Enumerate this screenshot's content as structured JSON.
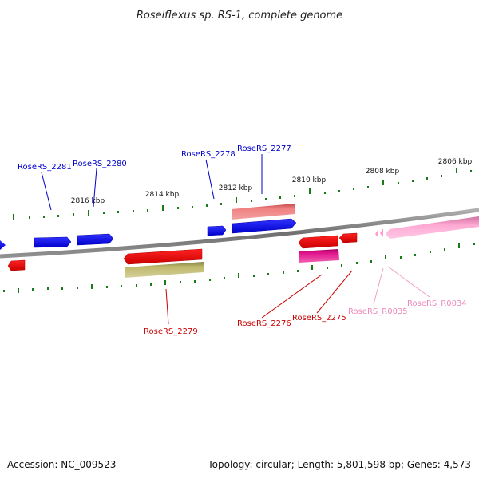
{
  "title": "Roseiflexus sp. RS-1, complete genome",
  "footer": {
    "accession": "Accession: NC_009523",
    "stats": "Topology: circular; Length: 5,801,598 bp; Genes: 4,573"
  },
  "ruler_labels": [
    "2816 kbp",
    "2814 kbp",
    "2812 kbp",
    "2810 kbp",
    "2808 kbp",
    "2806 kbp"
  ],
  "gene_labels": {
    "g2281": "RoseRS_2281",
    "g2280": "RoseRS_2280",
    "g2278": "RoseRS_2278",
    "g2277": "RoseRS_2277",
    "g2279": "RoseRS_2279",
    "g2276": "RoseRS_2276",
    "g2275": "RoseRS_2275",
    "r0035": "RoseRS_R0035",
    "r0034": "RoseRS_R0034"
  },
  "colors": {
    "backbone": "#808080",
    "cds_forward": "#0000ff",
    "cds_reverse": "#ff0000",
    "tick": "#1a7a1a",
    "label_blue": "#0000cc",
    "label_red": "#cc0000",
    "label_pink": "#ee88bb",
    "feature_salmon": "#f08080",
    "feature_olive": "#bdb76b",
    "feature_magenta": "#e0148c",
    "feature_pink": "#ffaad4"
  }
}
